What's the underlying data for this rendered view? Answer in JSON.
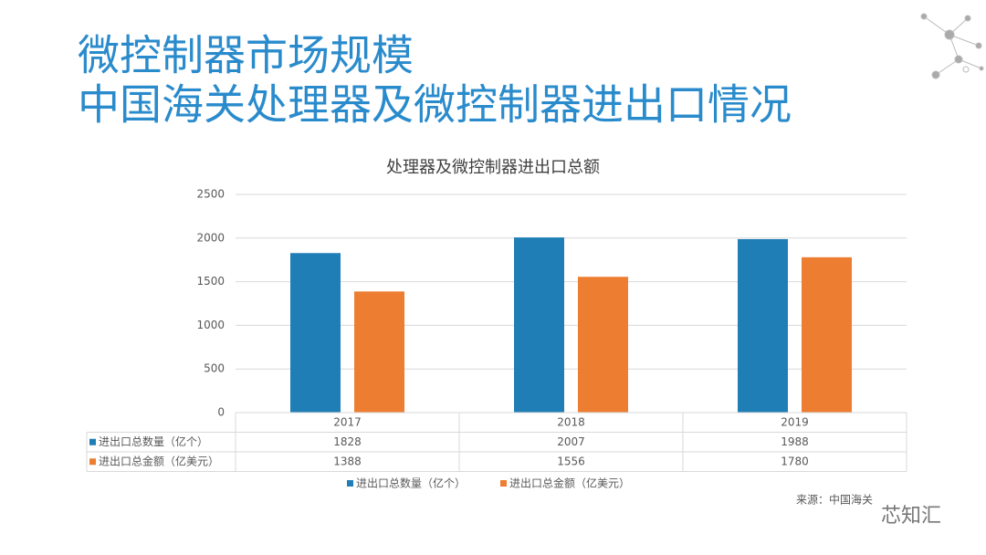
{
  "header": {
    "title_lines": [
      "微控制器市场规模",
      "中国海关处理器及微控制器进出口情况"
    ]
  },
  "chart_data": {
    "type": "bar",
    "title": "处理器及微控制器进出口总额",
    "categories": [
      "2017",
      "2018",
      "2019"
    ],
    "series": [
      {
        "name": "进出口总数量（亿个）",
        "color": "#1f7eb5",
        "values": [
          1828,
          2007,
          1988
        ]
      },
      {
        "name": "进出口总金额（亿美元）",
        "color": "#ed7d31",
        "values": [
          1388,
          1556,
          1780
        ]
      }
    ],
    "ylim": [
      0,
      2500
    ],
    "yticks": [
      0,
      500,
      1000,
      1500,
      2000,
      2500
    ],
    "grid": true,
    "data_table": true
  },
  "footer": {
    "source": "来源：中国海关",
    "watermark": "芯知汇"
  }
}
